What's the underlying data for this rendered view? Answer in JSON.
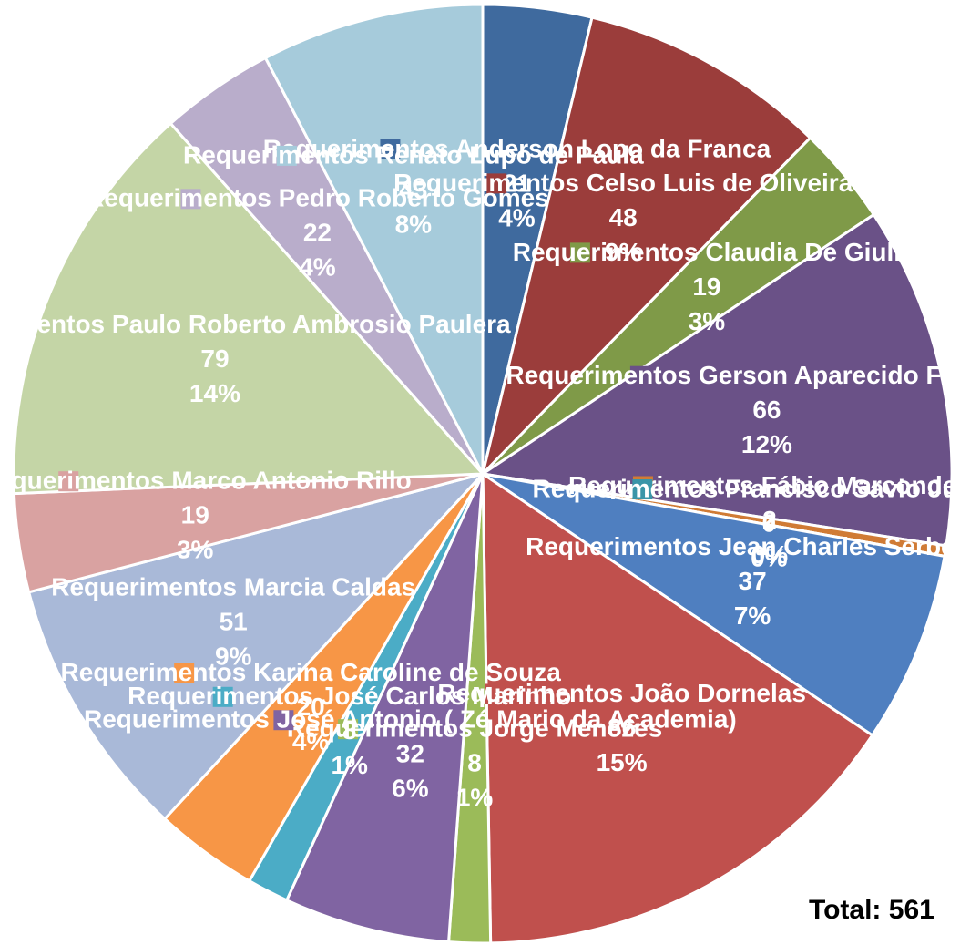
{
  "chart_data": {
    "type": "pie",
    "categories": [
      "Requerimentos Anderson Lopo da Franca",
      "Requerimentos Celso Luis de Oliveira",
      "Requerimentos Claudia De Giuli",
      "Requerimentos Gerson Aparecido Furquim",
      "Requerimentos Fábio Marcondes",
      "Requerimentos Francisco Savio Junior",
      "Requerimentos Jean Charles Serbeto",
      "Requerimentos João Dornelas",
      "Requerimentos Jorge Menezes",
      "Requerimentos José Antonio ( Zé Mario da Academia)",
      "Requerimentos José Carlos Marinho",
      "Requerimentos Karina Caroline de Souza",
      "Requerimentos Marcia Caldas",
      "Requerimentos Marco Antonio Rillo",
      "Requerimentos Paulo Roberto Ambrosio Paulera",
      "Requerimentos Pedro Roberto Gomes",
      "Requerimentos Renato Lupo de Paula"
    ],
    "values": [
      21,
      48,
      19,
      66,
      2,
      0,
      37,
      86,
      8,
      32,
      8,
      20,
      51,
      19,
      79,
      22,
      43
    ],
    "value_labels": [
      "4%",
      "9%",
      "3%",
      "12%",
      "0%",
      "0%",
      "7%",
      "15%",
      "1%",
      "6%",
      "1%",
      "4%",
      "9%",
      "3%",
      "14%",
      "4%",
      "8%"
    ],
    "colors": [
      "#3f6a9e",
      "#9b3d3b",
      "#7f9a48",
      "#6a5187",
      "#d07b35",
      "#3a95a8",
      "#4f7fc0",
      "#c0504d",
      "#9bbb59",
      "#8064a2",
      "#4bacc6",
      "#f79646",
      "#a9b9d8",
      "#d9a2a1",
      "#c4d5a6",
      "#b9adcb",
      "#a6cbdb"
    ],
    "total": "Total: 561"
  }
}
